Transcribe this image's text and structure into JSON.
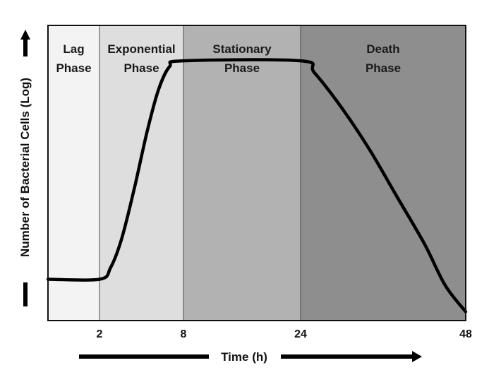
{
  "chart_data": {
    "type": "line",
    "xlabel": "Time (h)",
    "ylabel": "Number of Bacterial Cells (Log)",
    "x_ticks": [
      2,
      8,
      24,
      48
    ],
    "x_tick_labels": [
      "2",
      "8",
      "24",
      "48"
    ],
    "grid": false,
    "legend": "none",
    "phases": [
      {
        "lines": [
          "Lag",
          "Phase"
        ],
        "color": "#f3f3f3"
      },
      {
        "lines": [
          "Exponential",
          "Phase"
        ],
        "color": "#dedede"
      },
      {
        "lines": [
          "Stationary",
          "Phase"
        ],
        "color": "#b2b2b2"
      },
      {
        "lines": [
          "Death",
          "Phase"
        ],
        "color": "#8e8e8e"
      }
    ],
    "series": [
      {
        "color": "#000000",
        "points": [
          [
            0,
            0.14
          ],
          [
            2,
            0.14
          ],
          [
            2.8,
            0.18
          ],
          [
            3.6,
            0.28
          ],
          [
            4.5,
            0.45
          ],
          [
            5.4,
            0.64
          ],
          [
            6.2,
            0.78
          ],
          [
            7.0,
            0.86
          ],
          [
            8,
            0.88
          ],
          [
            24,
            0.88
          ],
          [
            26,
            0.84
          ],
          [
            30,
            0.72
          ],
          [
            34,
            0.58
          ],
          [
            38,
            0.42
          ],
          [
            42,
            0.26
          ],
          [
            45,
            0.12
          ],
          [
            48,
            0.03
          ]
        ]
      }
    ]
  }
}
